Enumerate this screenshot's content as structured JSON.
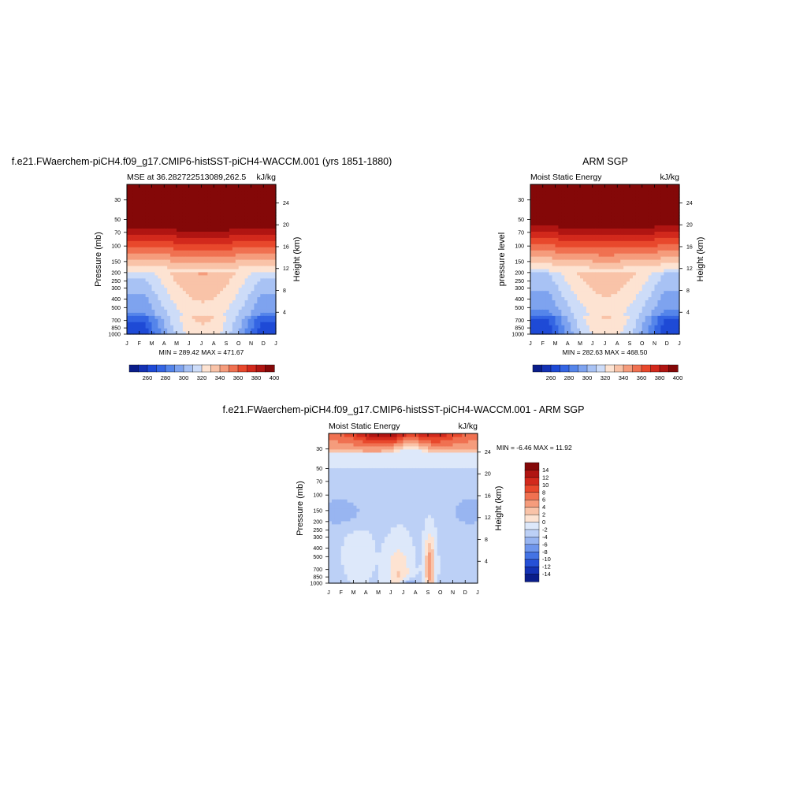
{
  "panels": [
    {
      "title": "f.e21.FWaerchem-piCH4.f09_g17.CMIP6-histSST-piCH4-WACCM.001 (yrs 1851-1880)",
      "left_label": "MSE at 36.282722513089,262.5",
      "right_label": "kJ/kg",
      "ylabel": "Pressure (mb)",
      "y2label": "Height (km)",
      "minmax": "MIN = 289.42 MAX = 471.67"
    },
    {
      "title": "ARM SGP",
      "left_label": "Moist Static Energy",
      "right_label": "kJ/kg",
      "ylabel": "pressure level",
      "y2label": "Height (km)",
      "minmax": "MIN = 282.63 MAX = 468.50"
    },
    {
      "title": "f.e21.FWaerchem-piCH4.f09_g17.CMIP6-histSST-piCH4-WACCM.001 - ARM SGP",
      "left_label": "Moist Static Energy",
      "right_label": "kJ/kg",
      "ylabel": "Pressure (mb)",
      "y2label": "Height (km)",
      "minmax": "MIN =  -6.46 MAX =  11.92"
    }
  ],
  "colorbar_abs": {
    "tick_labels": [
      "260",
      "280",
      "300",
      "320",
      "340",
      "360",
      "380",
      "400"
    ],
    "colors": [
      "#0a1d8a",
      "#1432b4",
      "#1e4ad6",
      "#3465e3",
      "#5585ea",
      "#7ea3ef",
      "#a8c2f4",
      "#cddcf8",
      "#fde3d2",
      "#f9c3a8",
      "#f59c7c",
      "#f07151",
      "#e8482c",
      "#d2291c",
      "#b01512",
      "#840808"
    ]
  },
  "colorbar_diff": {
    "tick_labels": [
      "14",
      "12",
      "10",
      "8",
      "6",
      "4",
      "2",
      "0",
      "-2",
      "-4",
      "-6",
      "-8",
      "-10",
      "-12",
      "-14"
    ],
    "colors": [
      "#840808",
      "#b01512",
      "#d2291c",
      "#e8482c",
      "#f07151",
      "#f59c7c",
      "#f9c3a8",
      "#fde3d2",
      "#dde8fa",
      "#bcd0f6",
      "#98b5f1",
      "#6f96ec",
      "#4473e4",
      "#2650d6",
      "#1432b4",
      "#0a1d8a"
    ]
  },
  "chart_data": [
    {
      "type": "heatmap",
      "title": "f.e21.FWaerchem-piCH4.f09_g17.CMIP6-histSST-piCH4-WACCM.001 (yrs 1851-1880)",
      "subtitle": "MSE at 36.282722513089,262.5",
      "units": "kJ/kg",
      "x": [
        "J",
        "F",
        "M",
        "A",
        "M",
        "J",
        "J",
        "A",
        "S",
        "O",
        "N",
        "D",
        "J"
      ],
      "xlabel": "",
      "y_pressure_ticks": [
        30,
        50,
        70,
        100,
        150,
        200,
        250,
        300,
        400,
        500,
        700,
        850,
        1000
      ],
      "y_pressure_scale": "log",
      "ylim": [
        1000,
        20
      ],
      "ylabel": "Pressure (mb)",
      "y2_height_ticks": [
        4,
        8,
        12,
        16,
        20,
        24
      ],
      "y2label": "Height (km)",
      "z_min": 289.42,
      "z_max": 471.67,
      "levels": [
        260,
        270,
        280,
        290,
        300,
        310,
        320,
        330,
        340,
        350,
        360,
        370,
        380,
        390,
        400
      ],
      "grid": false,
      "legend": "bottom"
    },
    {
      "type": "heatmap",
      "title": "ARM SGP",
      "subtitle": "Moist Static Energy",
      "units": "kJ/kg",
      "x": [
        "J",
        "F",
        "M",
        "A",
        "M",
        "J",
        "J",
        "A",
        "S",
        "O",
        "N",
        "D",
        "J"
      ],
      "xlabel": "",
      "y_pressure_ticks": [
        30,
        50,
        70,
        100,
        150,
        200,
        250,
        300,
        400,
        500,
        700,
        850,
        1000
      ],
      "y_pressure_scale": "log",
      "ylim": [
        1000,
        20
      ],
      "ylabel": "pressure level",
      "y2_height_ticks": [
        4,
        8,
        12,
        16,
        20,
        24
      ],
      "y2label": "Height (km)",
      "z_min": 282.63,
      "z_max": 468.5,
      "levels": [
        260,
        270,
        280,
        290,
        300,
        310,
        320,
        330,
        340,
        350,
        360,
        370,
        380,
        390,
        400
      ],
      "grid": false,
      "legend": "bottom"
    },
    {
      "type": "heatmap",
      "title": "f.e21.FWaerchem-piCH4.f09_g17.CMIP6-histSST-piCH4-WACCM.001 - ARM SGP",
      "subtitle": "Moist Static Energy",
      "units": "kJ/kg",
      "x": [
        "J",
        "F",
        "M",
        "A",
        "M",
        "J",
        "J",
        "A",
        "S",
        "O",
        "N",
        "D",
        "J"
      ],
      "xlabel": "",
      "y_pressure_ticks": [
        30,
        50,
        70,
        100,
        150,
        200,
        250,
        300,
        400,
        500,
        700,
        850,
        1000
      ],
      "y_pressure_scale": "log",
      "ylim": [
        1000,
        20
      ],
      "ylabel": "Pressure (mb)",
      "y2_height_ticks": [
        4,
        8,
        12,
        16,
        20,
        24
      ],
      "y2label": "Height (km)",
      "z_min": -6.46,
      "z_max": 11.92,
      "levels": [
        -14,
        -12,
        -10,
        -8,
        -6,
        -4,
        -2,
        0,
        2,
        4,
        6,
        8,
        10,
        12,
        14
      ],
      "grid": false,
      "legend": "right"
    }
  ]
}
